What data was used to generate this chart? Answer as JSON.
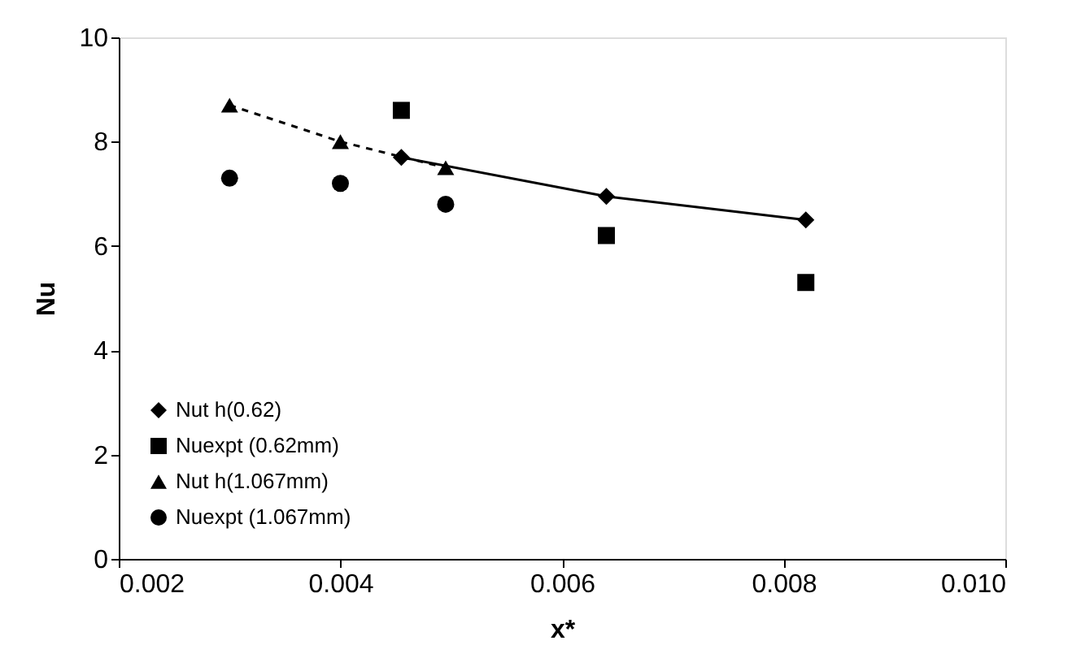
{
  "chart_data": {
    "type": "scatter",
    "xlabel": "x*",
    "ylabel": "Nu",
    "xlim": [
      0.002,
      0.01
    ],
    "ylim": [
      0,
      10
    ],
    "xticks": [
      {
        "value": 0.002,
        "label": "0.002"
      },
      {
        "value": 0.004,
        "label": "0.004"
      },
      {
        "value": 0.006,
        "label": "0.006"
      },
      {
        "value": 0.008,
        "label": "0.008"
      },
      {
        "value": 0.01,
        "label": "0.010"
      }
    ],
    "yticks": [
      0,
      2,
      4,
      6,
      8,
      10
    ],
    "grid": false,
    "legend": "bottom left",
    "series": [
      {
        "name": "Nut h(0.62)",
        "type": "line",
        "marker": "diamond",
        "line_style": "solid",
        "color": "#000000",
        "x": [
          0.00455,
          0.0064,
          0.0082
        ],
        "values": [
          7.7,
          6.95,
          6.5
        ]
      },
      {
        "name": "Nuexpt (0.62mm)",
        "marker": "square",
        "color": "#000000",
        "x": [
          0.00455,
          0.0064,
          0.0082
        ],
        "values": [
          8.6,
          6.2,
          5.3
        ]
      },
      {
        "name": "Nut h(1.067mm)",
        "type": "line",
        "marker": "triangle",
        "line_style": "dashed",
        "color": "#000000",
        "x": [
          0.003,
          0.004,
          0.00495
        ],
        "values": [
          8.7,
          8.0,
          7.5
        ]
      },
      {
        "name": "Nuexpt (1.067mm)",
        "marker": "circle",
        "color": "#000000",
        "x": [
          0.003,
          0.004,
          0.00495
        ],
        "values": [
          7.3,
          7.2,
          6.8
        ]
      }
    ]
  }
}
